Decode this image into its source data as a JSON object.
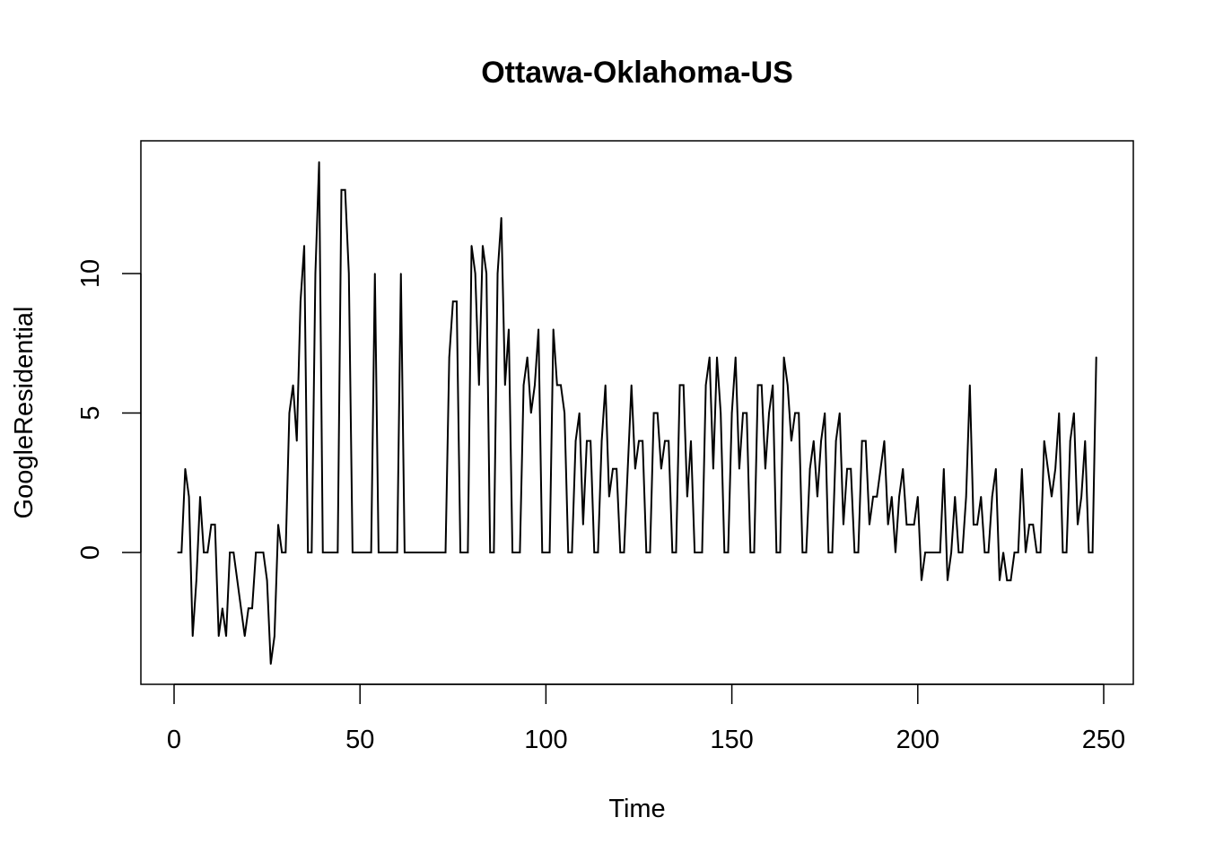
{
  "chart_data": {
    "type": "line",
    "title": "Ottawa-Oklahoma-US",
    "xlabel": "Time",
    "ylabel": "GoogleResidential",
    "xlim": [
      1,
      248
    ],
    "ylim": [
      -4,
      14
    ],
    "x_ticks": [
      0,
      50,
      100,
      150,
      200,
      250
    ],
    "y_ticks": [
      0,
      5,
      10
    ],
    "grid": false,
    "legend": "none",
    "line_color": "#000000",
    "x_start": 1,
    "series": [
      {
        "values": [
          0,
          0,
          3,
          2,
          -3,
          -1,
          2,
          0,
          0,
          1,
          1,
          -3,
          -2,
          -3,
          0,
          0,
          -1,
          -2,
          -3,
          -2,
          -2,
          0,
          0,
          0,
          -1,
          -4,
          -3,
          1,
          0,
          0,
          5,
          6,
          4,
          9,
          11,
          0,
          0,
          10,
          14,
          0,
          0,
          0,
          0,
          0,
          13,
          13,
          10,
          0,
          0,
          0,
          0,
          0,
          0,
          10,
          0,
          0,
          0,
          0,
          0,
          0,
          10,
          0,
          0,
          0,
          0,
          0,
          0,
          0,
          0,
          0,
          0,
          0,
          0,
          7,
          9,
          9,
          0,
          0,
          0,
          11,
          10,
          6,
          11,
          10,
          0,
          0,
          10,
          12,
          6,
          8,
          0,
          0,
          0,
          6,
          7,
          5,
          6,
          8,
          0,
          0,
          0,
          8,
          6,
          6,
          5,
          0,
          0,
          4,
          5,
          1,
          4,
          4,
          0,
          0,
          4,
          6,
          2,
          3,
          3,
          0,
          0,
          3,
          6,
          3,
          4,
          4,
          0,
          0,
          5,
          5,
          3,
          4,
          4,
          0,
          0,
          6,
          6,
          2,
          4,
          0,
          0,
          0,
          6,
          7,
          3,
          7,
          5,
          0,
          0,
          5,
          7,
          3,
          5,
          5,
          0,
          0,
          6,
          6,
          3,
          5,
          6,
          0,
          0,
          7,
          6,
          4,
          5,
          5,
          0,
          0,
          3,
          4,
          2,
          4,
          5,
          0,
          0,
          4,
          5,
          1,
          3,
          3,
          0,
          0,
          4,
          4,
          1,
          2,
          2,
          3,
          4,
          1,
          2,
          0,
          2,
          3,
          1,
          1,
          1,
          2,
          -1,
          0,
          0,
          0,
          0,
          0,
          3,
          -1,
          0,
          2,
          0,
          0,
          2,
          6,
          1,
          1,
          2,
          0,
          0,
          2,
          3,
          -1,
          0,
          -1,
          -1,
          0,
          0,
          3,
          0,
          1,
          1,
          0,
          0,
          4,
          3,
          2,
          3,
          5,
          0,
          0,
          4,
          5,
          1,
          2,
          4,
          0,
          0,
          7
        ]
      }
    ]
  }
}
